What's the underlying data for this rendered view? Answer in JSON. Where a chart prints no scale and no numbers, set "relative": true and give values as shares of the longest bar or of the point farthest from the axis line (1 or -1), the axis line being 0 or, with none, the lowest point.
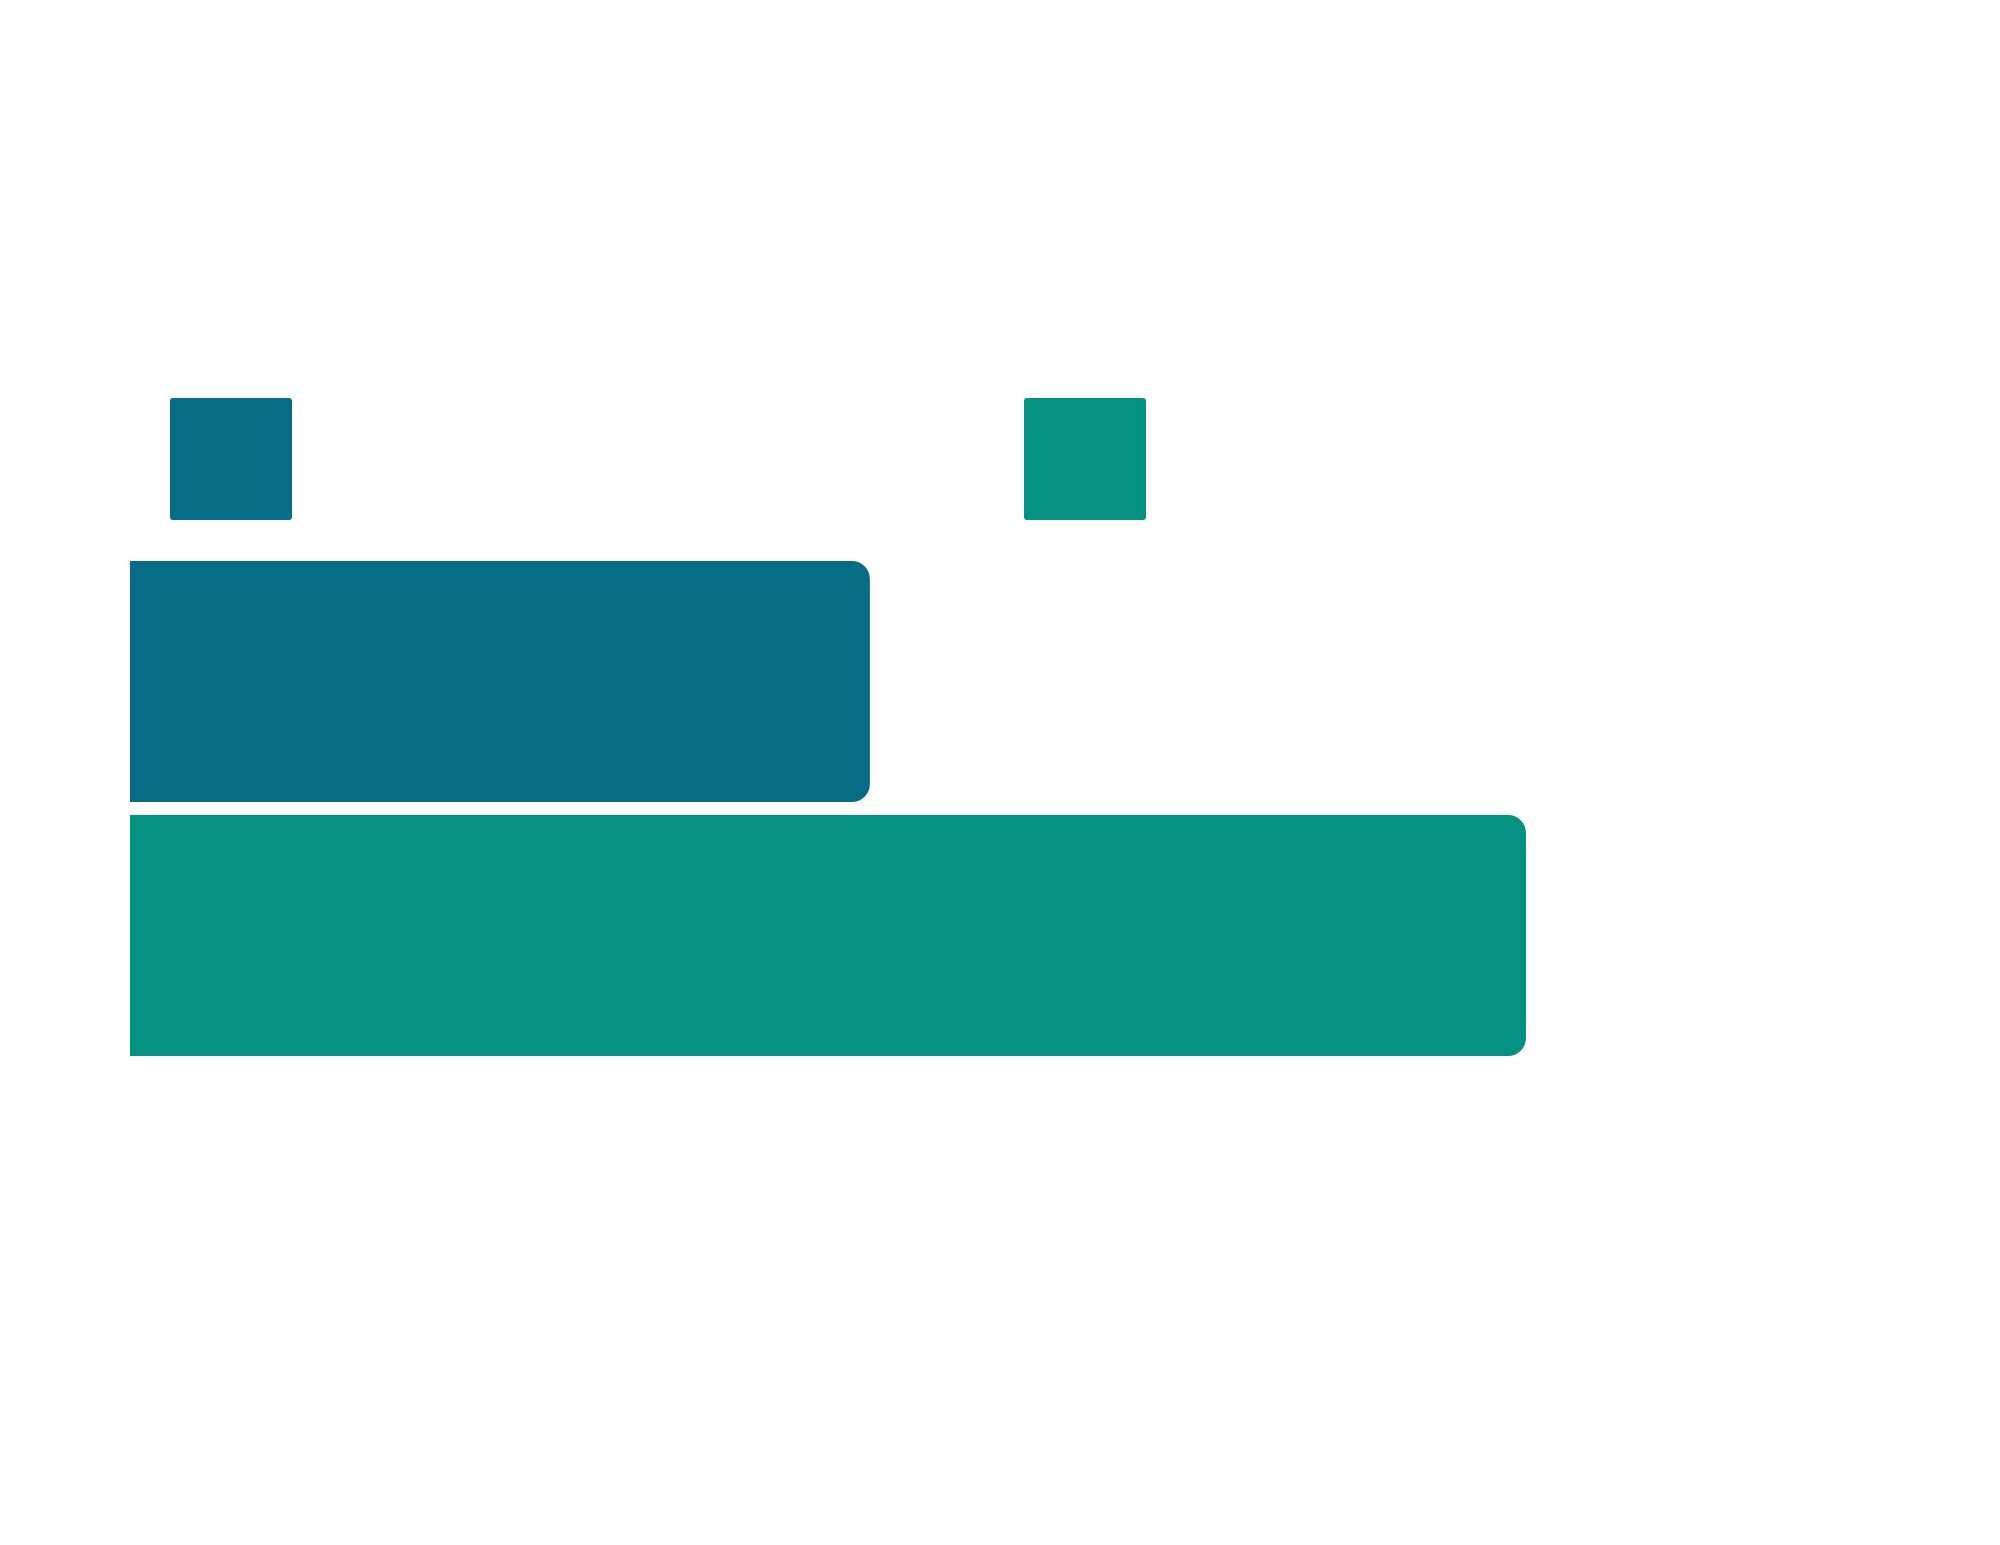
{
  "chart_data": {
    "type": "bar",
    "orientation": "horizontal",
    "relative": true,
    "categories": [
      null
    ],
    "series": [
      {
        "color": "#076c84",
        "values": [
          0.53
        ]
      },
      {
        "color": "#059181",
        "values": [
          1
        ]
      }
    ]
  }
}
